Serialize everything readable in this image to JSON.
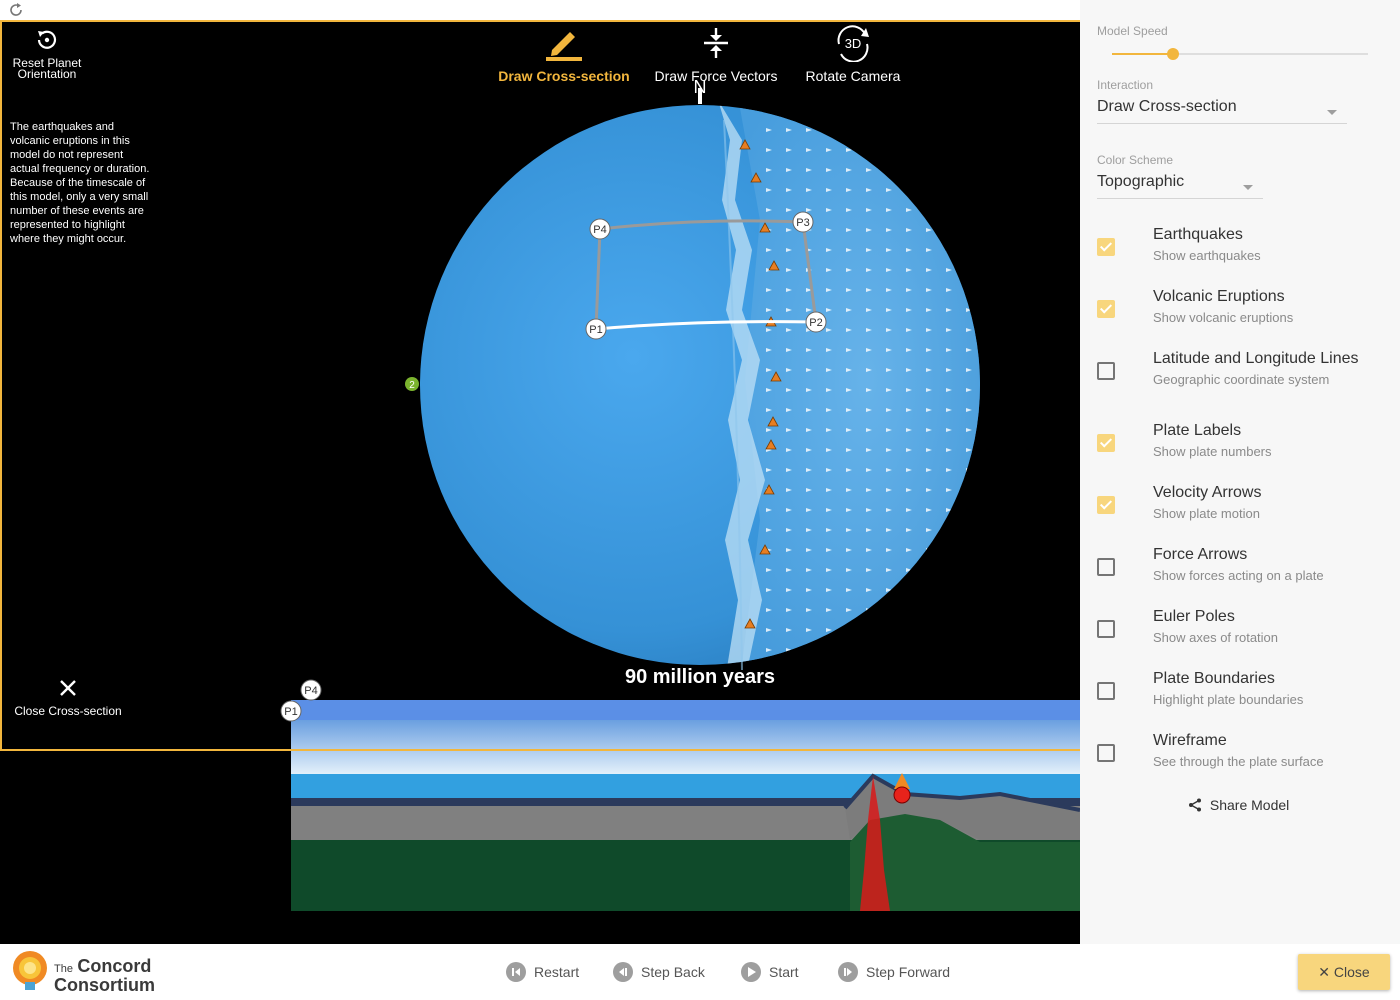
{
  "topbar": {
    "reload_icon": "reload-icon"
  },
  "toolbar": {
    "reset_orientation": "Reset Planet Orientation",
    "tools": [
      {
        "label": "Draw Cross-section",
        "icon": "pencil-icon",
        "active": true
      },
      {
        "label": "Draw Force Vectors",
        "icon": "compress-icon",
        "active": false
      },
      {
        "label": "Rotate Camera",
        "icon": "rotate-3d-icon",
        "active": false
      }
    ]
  },
  "disclaimer": "The earthquakes and volcanic eruptions in this model do not represent actual frequency or duration. Because of the timescale of this model, only a very small number of these events are represented to highlight where they might occur.",
  "globe": {
    "north_label": "N",
    "plate_label": "2",
    "points": [
      "P1",
      "P2",
      "P3",
      "P4"
    ]
  },
  "time_label": "90 million years",
  "close_cross_section": "Close Cross-section",
  "cross_section": {
    "points": [
      "P1",
      "P4"
    ]
  },
  "sidebar": {
    "model_speed": {
      "label": "Model Speed",
      "value_fraction": 0.24
    },
    "interaction": {
      "label": "Interaction",
      "value": "Draw Cross-section"
    },
    "color_scheme": {
      "label": "Color Scheme",
      "value": "Topographic"
    },
    "options": [
      {
        "title": "Earthquakes",
        "subtitle": "Show earthquakes",
        "checked": true
      },
      {
        "title": "Volcanic Eruptions",
        "subtitle": "Show volcanic eruptions",
        "checked": true
      },
      {
        "title": "Latitude and Longitude Lines",
        "subtitle": "Geographic coordinate system",
        "checked": false
      },
      {
        "title": "Plate Labels",
        "subtitle": "Show plate numbers",
        "checked": true
      },
      {
        "title": "Velocity Arrows",
        "subtitle": "Show plate motion",
        "checked": true
      },
      {
        "title": "Force Arrows",
        "subtitle": "Show forces acting on a plate",
        "checked": false
      },
      {
        "title": "Euler Poles",
        "subtitle": "Show axes of rotation",
        "checked": false
      },
      {
        "title": "Plate Boundaries",
        "subtitle": "Highlight plate boundaries",
        "checked": false
      },
      {
        "title": "Wireframe",
        "subtitle": "See through the plate surface",
        "checked": false
      }
    ],
    "share": "Share Model"
  },
  "bottombar": {
    "logo_the": "The",
    "logo_line1": "Concord",
    "logo_line2": "Consortium",
    "controls": [
      {
        "label": "Restart",
        "icon": "restart-icon"
      },
      {
        "label": "Step Back",
        "icon": "step-back-icon"
      },
      {
        "label": "Start",
        "icon": "play-icon"
      },
      {
        "label": "Step Forward",
        "icon": "step-forward-icon"
      }
    ],
    "close": "Close"
  },
  "colors": {
    "accent": "#f2b63d",
    "ocean": "#3d9be0",
    "sidebar_bg": "#f7f7f7",
    "checkbox_on": "#f8d67d"
  }
}
